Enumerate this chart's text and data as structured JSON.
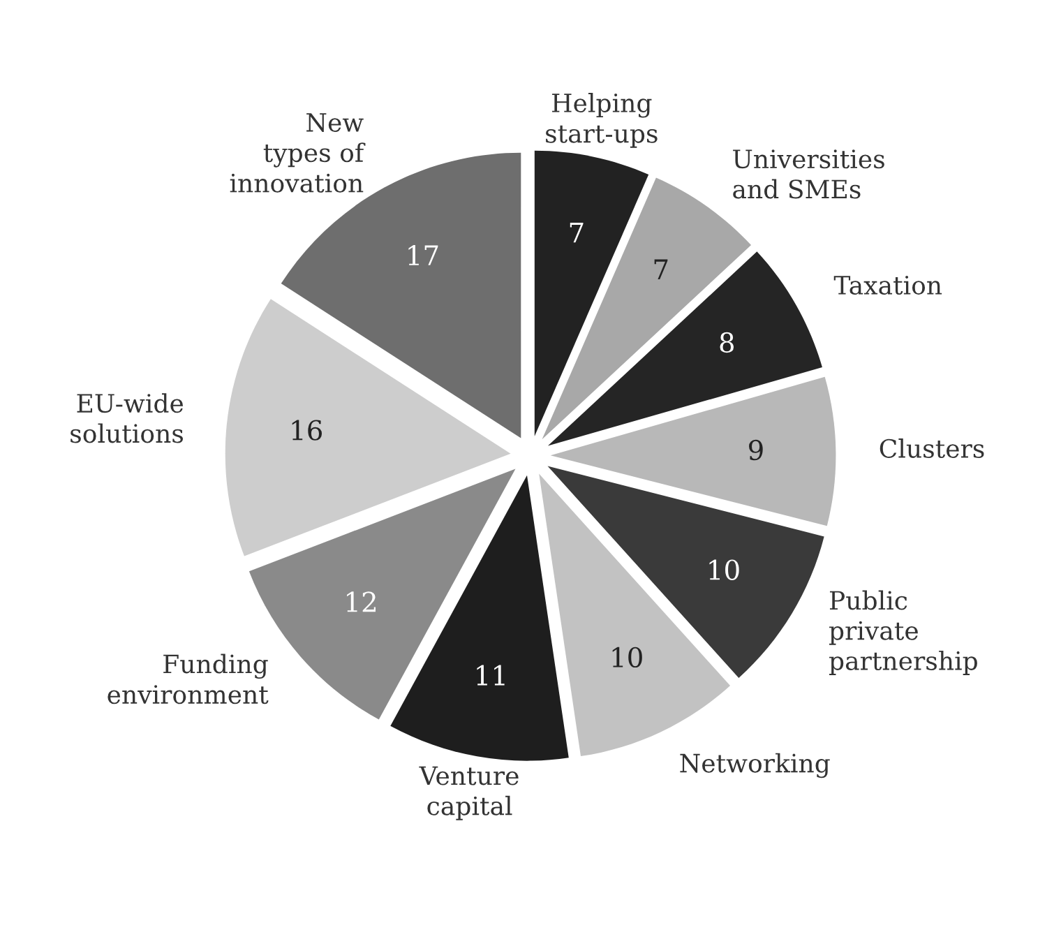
{
  "chart_data": {
    "type": "pie",
    "categories": [
      "Helping\nstart-ups",
      "Universities\nand SMEs",
      "Taxation",
      "Clusters",
      "Public\nprivate\npartnership",
      "Networking",
      "Venture\ncapital",
      "Funding\nenvironment",
      "EU-wide\nsolutions",
      "New\ntypes of\ninnovation"
    ],
    "values": [
      7,
      7,
      8,
      9,
      10,
      10,
      11,
      12,
      16,
      17
    ],
    "colors": [
      "#222222",
      "#a8a8a8",
      "#252525",
      "#b8b8b8",
      "#3a3a3a",
      "#c2c2c2",
      "#1e1e1e",
      "#8a8a8a",
      "#cdcdcd",
      "#6e6e6e"
    ],
    "data_labels": true
  }
}
